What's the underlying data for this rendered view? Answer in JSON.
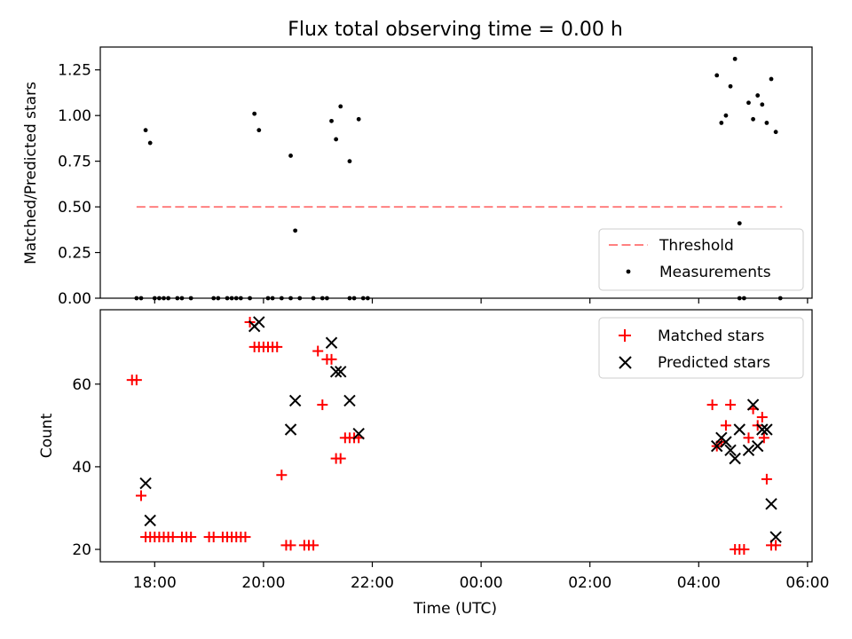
{
  "chart_data": [
    {
      "type": "scatter",
      "title": "Flux total observing time = 0.00 h",
      "xlabel": "",
      "ylabel": "Matched/Predicted stars",
      "x_axis": "time (UTC), hours after 18:00 on the first day",
      "xlim": [
        "17:00",
        "06:05"
      ],
      "ylim": [
        0,
        1.375
      ],
      "yticks": [
        "0.00",
        "0.25",
        "0.50",
        "0.75",
        "1.00",
        "1.25"
      ],
      "xtick_labels_shown": false,
      "legend": {
        "position": "lower-right",
        "entries": [
          "Threshold",
          "Measurements"
        ]
      },
      "threshold": {
        "name": "Threshold",
        "value": 0.5,
        "x_start": "17:40",
        "x_end": "05:32",
        "style": "dashed",
        "color": "#ff8080"
      },
      "series": [
        {
          "name": "Measurements",
          "color": "#000000",
          "marker": "dot",
          "points": [
            [
              "17:40",
              0.0
            ],
            [
              "17:45",
              0.0
            ],
            [
              "17:50",
              0.92
            ],
            [
              "17:55",
              0.85
            ],
            [
              "18:00",
              0.0
            ],
            [
              "18:05",
              0.0
            ],
            [
              "18:10",
              0.0
            ],
            [
              "18:15",
              0.0
            ],
            [
              "18:25",
              0.0
            ],
            [
              "18:30",
              0.0
            ],
            [
              "18:40",
              0.0
            ],
            [
              "19:05",
              0.0
            ],
            [
              "19:10",
              0.0
            ],
            [
              "19:20",
              0.0
            ],
            [
              "19:25",
              0.0
            ],
            [
              "19:30",
              0.0
            ],
            [
              "19:35",
              0.0
            ],
            [
              "19:45",
              0.0
            ],
            [
              "19:50",
              1.01
            ],
            [
              "19:55",
              0.92
            ],
            [
              "20:05",
              0.0
            ],
            [
              "20:10",
              0.0
            ],
            [
              "20:20",
              0.0
            ],
            [
              "20:30",
              0.0
            ],
            [
              "20:30",
              0.78
            ],
            [
              "20:35",
              0.37
            ],
            [
              "20:40",
              0.0
            ],
            [
              "20:55",
              0.0
            ],
            [
              "21:05",
              0.0
            ],
            [
              "21:10",
              0.0
            ],
            [
              "21:15",
              0.97
            ],
            [
              "21:20",
              0.87
            ],
            [
              "21:25",
              1.05
            ],
            [
              "21:35",
              0.75
            ],
            [
              "21:35",
              0.0
            ],
            [
              "21:40",
              0.0
            ],
            [
              "21:45",
              0.98
            ],
            [
              "21:50",
              0.0
            ],
            [
              "21:55",
              0.0
            ],
            [
              "04:20",
              1.22
            ],
            [
              "04:25",
              0.96
            ],
            [
              "04:30",
              1.0
            ],
            [
              "04:35",
              1.16
            ],
            [
              "04:40",
              1.31
            ],
            [
              "04:45",
              0.41
            ],
            [
              "04:45",
              0.0
            ],
            [
              "04:50",
              0.0
            ],
            [
              "04:55",
              1.07
            ],
            [
              "05:00",
              0.98
            ],
            [
              "05:05",
              1.11
            ],
            [
              "05:10",
              1.06
            ],
            [
              "05:15",
              0.96
            ],
            [
              "05:20",
              1.2
            ],
            [
              "05:25",
              0.91
            ],
            [
              "05:30",
              0.0
            ]
          ]
        }
      ]
    },
    {
      "type": "scatter",
      "title": "",
      "xlabel": "Time (UTC)",
      "ylabel": "Count",
      "xlim": [
        "17:00",
        "06:05"
      ],
      "ylim": [
        17,
        78
      ],
      "yticks": [
        "20",
        "40",
        "60"
      ],
      "xticks": [
        "18:00",
        "20:00",
        "22:00",
        "00:00",
        "02:00",
        "04:00",
        "06:00"
      ],
      "legend": {
        "position": "top-right",
        "entries": [
          "Matched stars",
          "Predicted stars"
        ]
      },
      "series": [
        {
          "name": "Matched stars",
          "color": "#ff0000",
          "marker": "plus",
          "points": [
            [
              "17:35",
              61
            ],
            [
              "17:40",
              61
            ],
            [
              "17:45",
              33
            ],
            [
              "17:50",
              23
            ],
            [
              "17:55",
              23
            ],
            [
              "18:00",
              23
            ],
            [
              "18:05",
              23
            ],
            [
              "18:10",
              23
            ],
            [
              "18:15",
              23
            ],
            [
              "18:20",
              23
            ],
            [
              "18:30",
              23
            ],
            [
              "18:35",
              23
            ],
            [
              "18:40",
              23
            ],
            [
              "19:00",
              23
            ],
            [
              "19:05",
              23
            ],
            [
              "19:15",
              23
            ],
            [
              "19:20",
              23
            ],
            [
              "19:25",
              23
            ],
            [
              "19:30",
              23
            ],
            [
              "19:35",
              23
            ],
            [
              "19:40",
              23
            ],
            [
              "19:45",
              75
            ],
            [
              "19:50",
              69
            ],
            [
              "19:55",
              69
            ],
            [
              "20:00",
              69
            ],
            [
              "20:05",
              69
            ],
            [
              "20:10",
              69
            ],
            [
              "20:15",
              69
            ],
            [
              "20:20",
              38
            ],
            [
              "20:25",
              21
            ],
            [
              "20:30",
              21
            ],
            [
              "20:45",
              21
            ],
            [
              "20:50",
              21
            ],
            [
              "20:55",
              21
            ],
            [
              "21:00",
              68
            ],
            [
              "21:05",
              55
            ],
            [
              "21:10",
              66
            ],
            [
              "21:15",
              66
            ],
            [
              "21:20",
              42
            ],
            [
              "21:25",
              42
            ],
            [
              "21:30",
              47
            ],
            [
              "21:35",
              47
            ],
            [
              "21:40",
              47
            ],
            [
              "21:45",
              47
            ],
            [
              "04:15",
              55
            ],
            [
              "04:20",
              45
            ],
            [
              "04:25",
              46
            ],
            [
              "04:30",
              50
            ],
            [
              "04:35",
              55
            ],
            [
              "04:40",
              20
            ],
            [
              "04:45",
              20
            ],
            [
              "04:50",
              20
            ],
            [
              "04:55",
              47
            ],
            [
              "05:00",
              54
            ],
            [
              "05:05",
              50
            ],
            [
              "05:10",
              52
            ],
            [
              "05:12",
              47
            ],
            [
              "05:15",
              37
            ],
            [
              "05:20",
              21
            ],
            [
              "05:25",
              21
            ]
          ]
        },
        {
          "name": "Predicted stars",
          "color": "#000000",
          "marker": "x",
          "points": [
            [
              "17:50",
              36
            ],
            [
              "17:55",
              27
            ],
            [
              "19:50",
              74
            ],
            [
              "19:55",
              75
            ],
            [
              "20:30",
              49
            ],
            [
              "20:35",
              56
            ],
            [
              "21:15",
              70
            ],
            [
              "21:20",
              63
            ],
            [
              "21:25",
              63
            ],
            [
              "21:35",
              56
            ],
            [
              "21:45",
              48
            ],
            [
              "04:20",
              45
            ],
            [
              "04:25",
              47
            ],
            [
              "04:30",
              46
            ],
            [
              "04:35",
              44
            ],
            [
              "04:40",
              42
            ],
            [
              "04:45",
              49
            ],
            [
              "04:55",
              44
            ],
            [
              "05:00",
              55
            ],
            [
              "05:05",
              45
            ],
            [
              "05:10",
              49
            ],
            [
              "05:15",
              49
            ],
            [
              "05:20",
              31
            ],
            [
              "05:25",
              23
            ]
          ]
        }
      ]
    }
  ]
}
